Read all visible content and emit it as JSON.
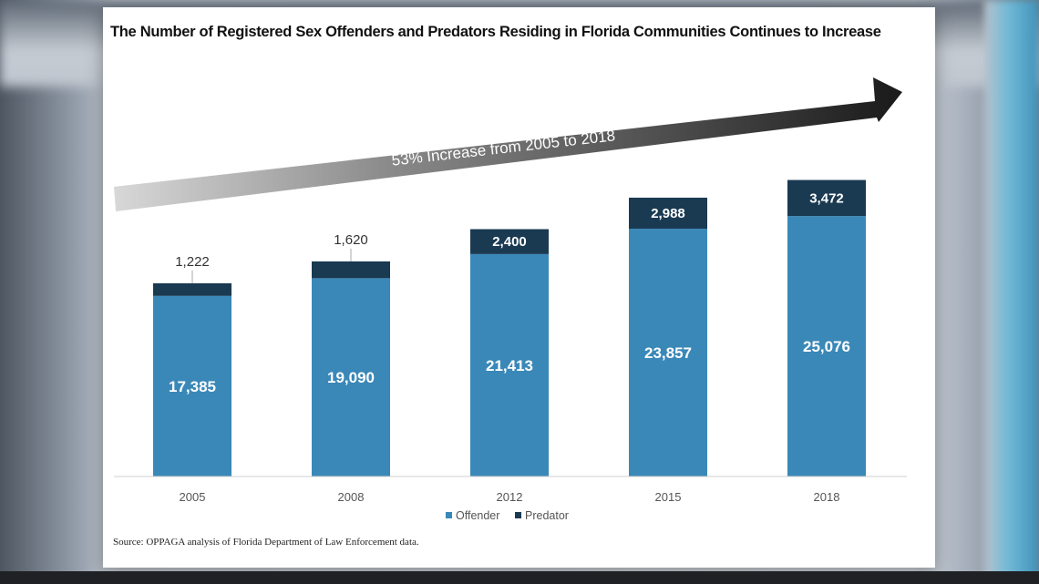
{
  "chart_data": {
    "type": "bar",
    "stacked": true,
    "title": "The Number of Registered Sex Offenders and Predators Residing in Florida Communities Continues to Increase",
    "categories": [
      "2005",
      "2008",
      "2012",
      "2015",
      "2018"
    ],
    "series": [
      {
        "name": "Offender",
        "values": [
          17385,
          19090,
          21413,
          23857,
          25076
        ],
        "labels": [
          "17,385",
          "19,090",
          "21,413",
          "23,857",
          "25,076"
        ],
        "color": "#3a88b8"
      },
      {
        "name": "Predator",
        "values": [
          1222,
          1620,
          2400,
          2988,
          3472
        ],
        "labels": [
          "1,222",
          "1,620",
          "2,400",
          "2,988",
          "3,472"
        ],
        "color": "#1a3a52"
      }
    ],
    "ylim": [
      0,
      30000
    ],
    "grid": false,
    "legend": "bottom-center",
    "annotation": "53% Increase from 2005 to 2018",
    "source": "Source:  OPPAGA analysis of Florida Department of Law Enforcement data."
  }
}
